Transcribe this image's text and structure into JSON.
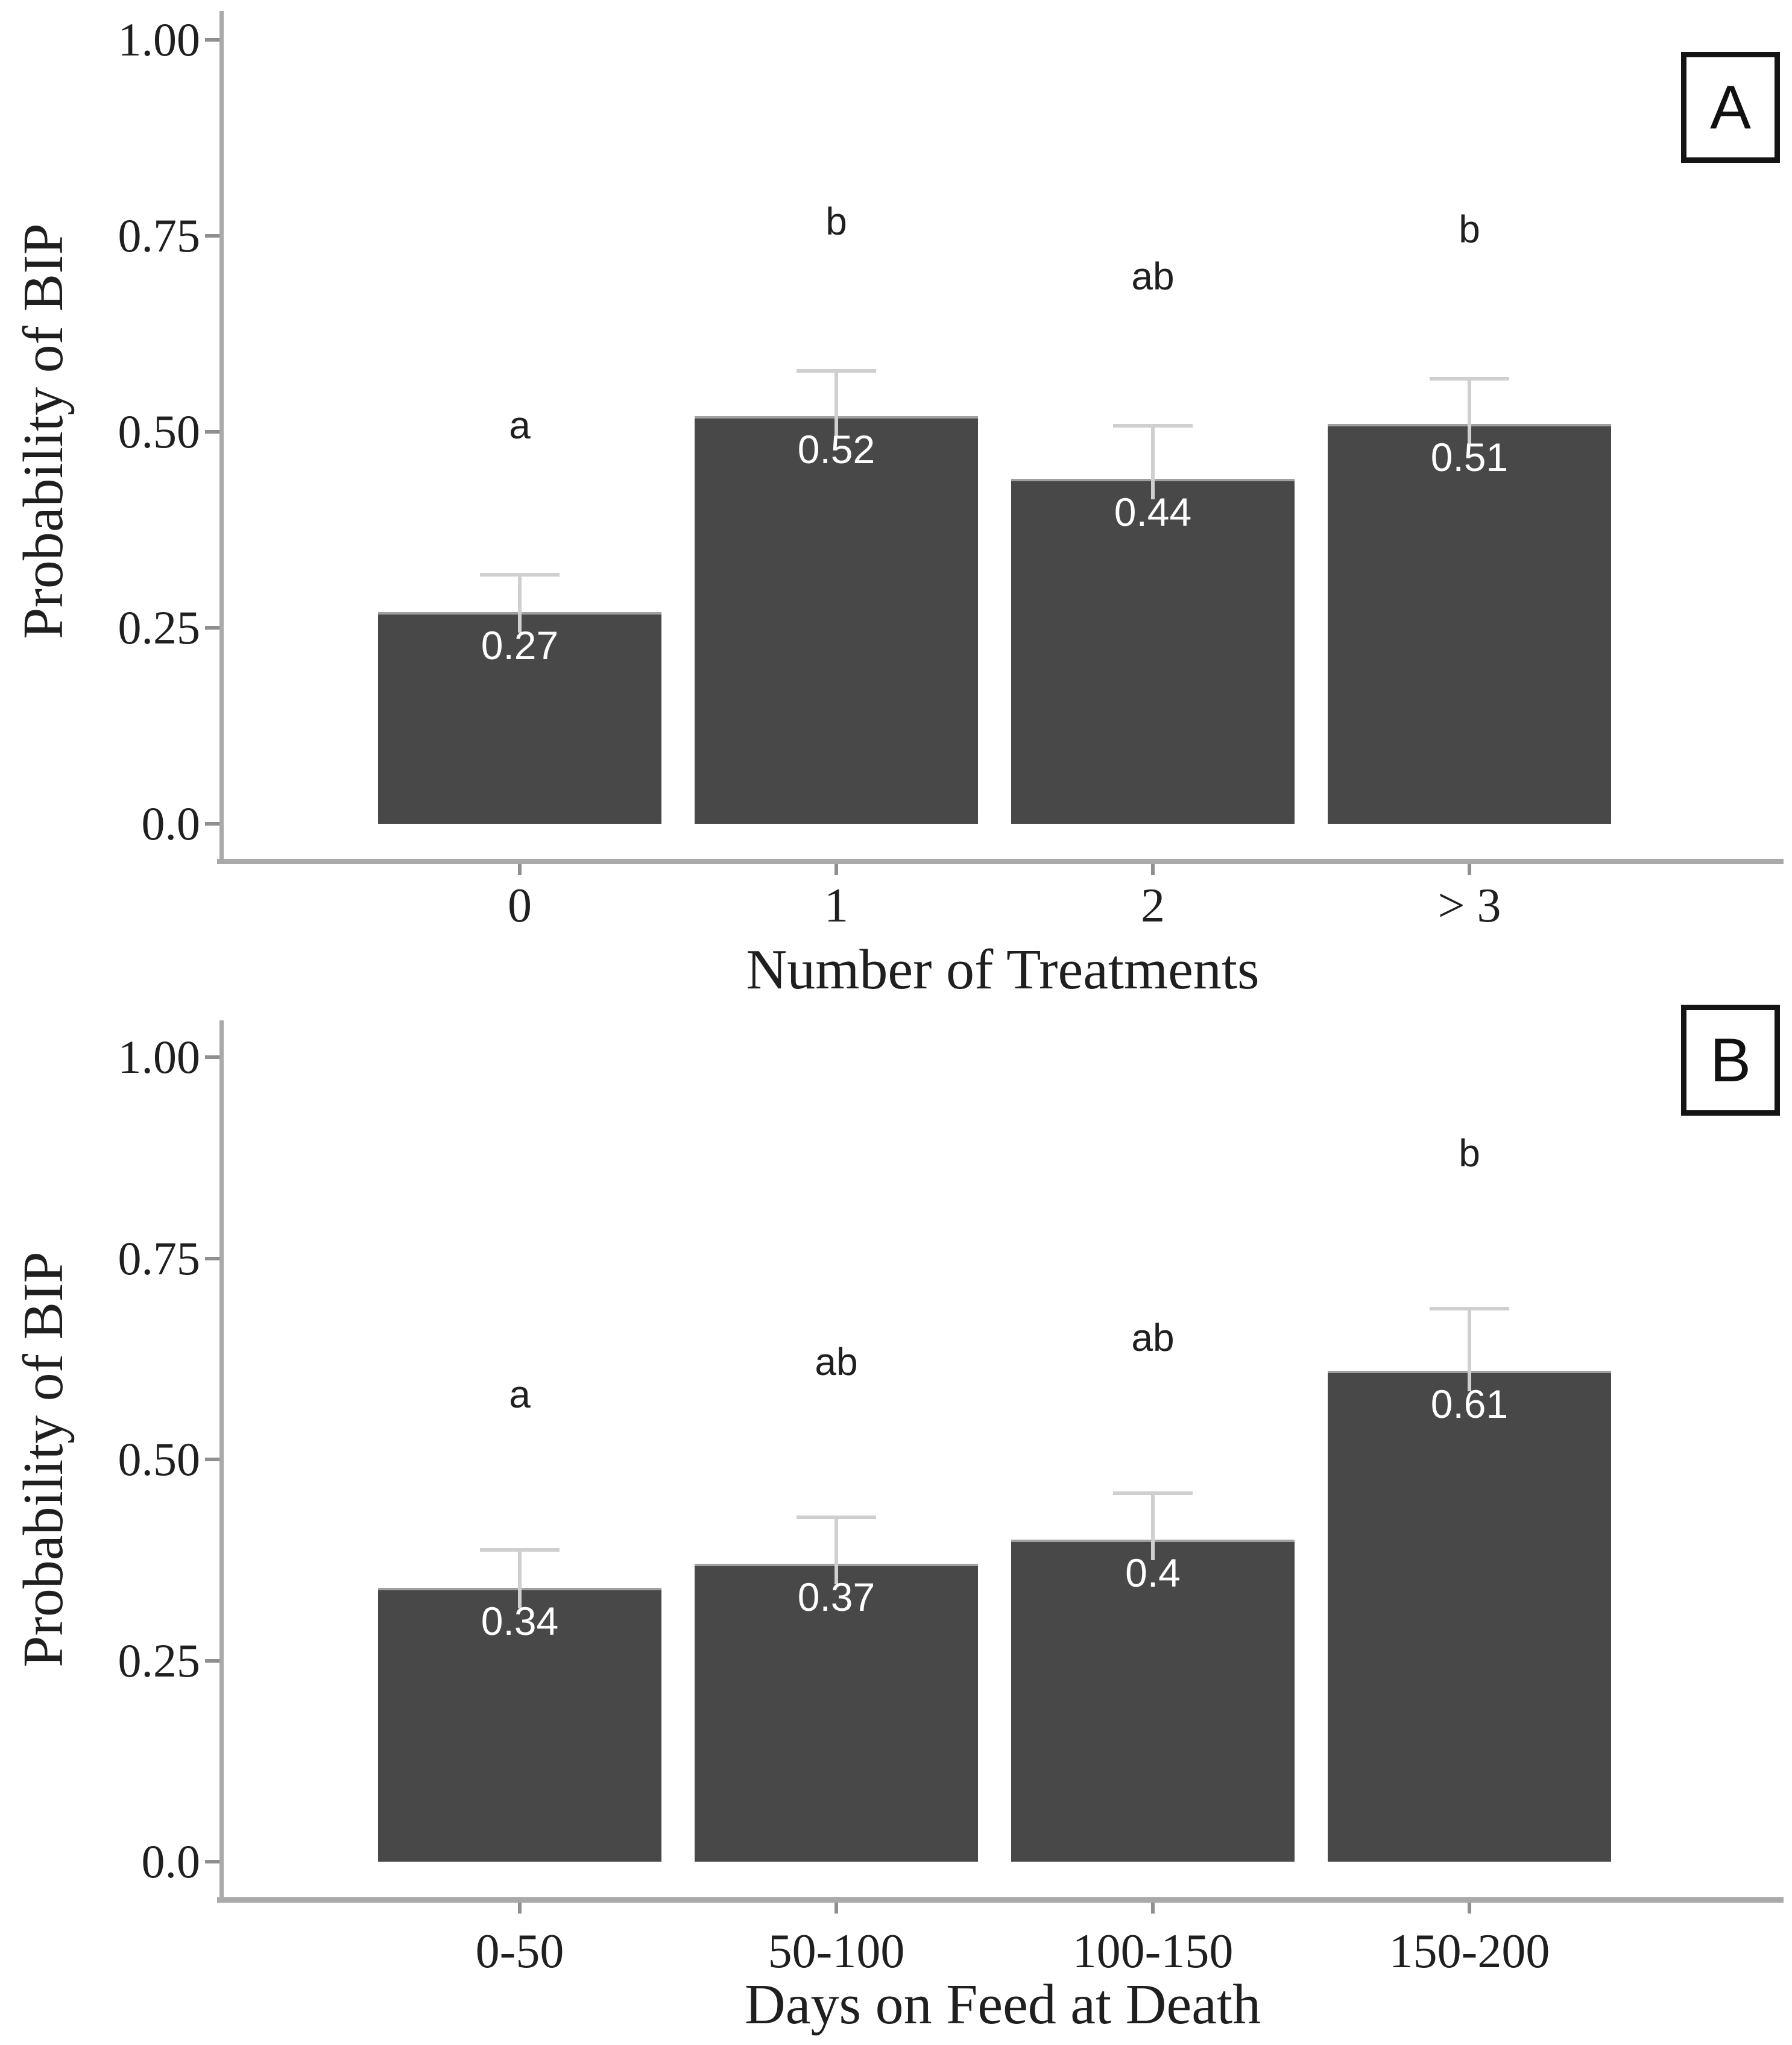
{
  "figure": {
    "background": "#ffffff",
    "description": "Two-panel bar chart of probability of BIP"
  },
  "colors": {
    "bar_fill": "#484848",
    "bar_top_edge": "#a0a0a0",
    "error_bar": "#cfcfcf",
    "axis_line": "#a9a9a9",
    "tick_mark": "#8f8f8f",
    "text": "#1f1f1f",
    "bar_value_label": "#ffffff",
    "panel_box_border": "#141414"
  },
  "chart_data": [
    {
      "type": "bar",
      "panel_label": "A",
      "title": "",
      "xlabel": "Number of Treatments",
      "ylabel": "Probability of BIP",
      "categories": [
        "0",
        "1",
        "2",
        "> 3"
      ],
      "values": [
        0.27,
        0.52,
        0.44,
        0.51
      ],
      "value_labels": [
        "0.27",
        "0.52",
        "0.44",
        "0.51"
      ],
      "error_bar_tops": [
        0.32,
        0.58,
        0.51,
        0.57
      ],
      "sig_letters": [
        "a",
        "b",
        "ab",
        "b"
      ],
      "yticks": {
        "values": [
          1.0,
          0.75,
          0.5,
          0.25,
          0.0
        ],
        "labels": [
          "1.00",
          "0.75",
          "0.50",
          "0.25",
          "0.0"
        ]
      },
      "ylim": [
        0,
        1.05
      ],
      "grid": false,
      "legend": "none",
      "error_bars": "upper whisker with cap"
    },
    {
      "type": "bar",
      "panel_label": "B",
      "title": "",
      "xlabel": "Days on Feed at Death",
      "ylabel": "Probability of BIP",
      "categories": [
        "0-50",
        "50-100",
        "100-150",
        "150-200"
      ],
      "values": [
        0.34,
        0.37,
        0.4,
        0.61
      ],
      "value_labels": [
        "0.34",
        "0.37",
        "0.4",
        "0.61"
      ],
      "error_bar_tops": [
        0.39,
        0.43,
        0.46,
        0.69
      ],
      "sig_letters": [
        "a",
        "ab",
        "ab",
        "b"
      ],
      "yticks": {
        "values": [
          1.0,
          0.75,
          0.5,
          0.25,
          0.0
        ],
        "labels": [
          "1.00",
          "0.75",
          "0.50",
          "0.25",
          "0.0"
        ]
      },
      "ylim": [
        0,
        1.05
      ],
      "grid": false,
      "legend": "none",
      "error_bars": "upper whisker with cap"
    }
  ]
}
